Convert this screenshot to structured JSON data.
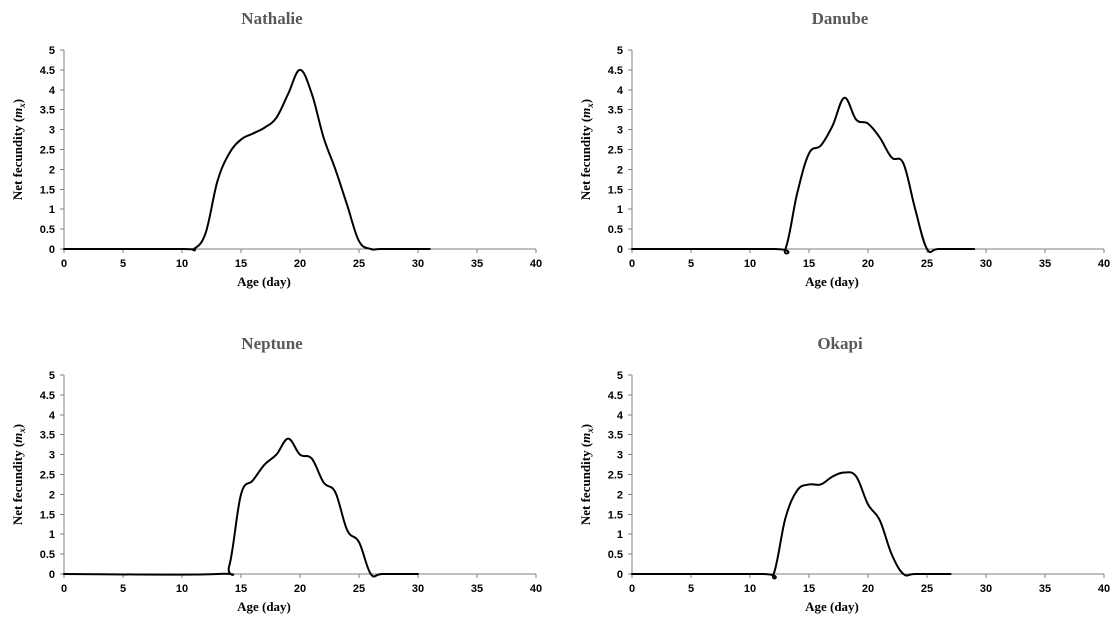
{
  "chart_data": [
    {
      "type": "line",
      "title": "Nathalie",
      "xlabel": "Age (day)",
      "ylabel_main": "Net fecundity (",
      "ylabel_symbol": "m",
      "ylabel_sub": "x",
      "ylabel_end": ")",
      "xlim": [
        0,
        40
      ],
      "ylim": [
        0,
        5
      ],
      "xticks": [
        "0",
        "5",
        "10",
        "15",
        "20",
        "25",
        "30",
        "35",
        "40"
      ],
      "yticks": [
        "0",
        "0.5",
        "1",
        "1.5",
        "2",
        "2.5",
        "3",
        "3.5",
        "4",
        "4.5",
        "5"
      ],
      "series": [
        {
          "x": [
            0,
            10,
            11,
            12,
            13,
            14,
            15,
            16,
            17,
            18,
            19,
            20,
            21,
            22,
            23,
            24,
            25,
            26,
            27,
            31
          ],
          "y": [
            0,
            0,
            0,
            0.4,
            1.7,
            2.4,
            2.75,
            2.9,
            3.05,
            3.3,
            3.9,
            4.5,
            3.9,
            2.8,
            2.0,
            1.1,
            0.2,
            0,
            0,
            0
          ]
        }
      ]
    },
    {
      "type": "line",
      "title": "Danube",
      "xlabel": "Age (day)",
      "ylabel_main": "Net fecundity (",
      "ylabel_symbol": "m",
      "ylabel_sub": "x",
      "ylabel_end": ")",
      "xlim": [
        0,
        40
      ],
      "ylim": [
        0,
        5
      ],
      "xticks": [
        "0",
        "5",
        "10",
        "15",
        "20",
        "25",
        "30",
        "35",
        "40"
      ],
      "yticks": [
        "0",
        "0.5",
        "1",
        "1.5",
        "2",
        "2.5",
        "3",
        "3.5",
        "4",
        "4.5",
        "5"
      ],
      "series": [
        {
          "x": [
            0,
            12,
            13,
            14,
            15,
            16,
            17,
            18,
            19,
            20,
            21,
            22,
            23,
            24,
            25,
            26,
            29
          ],
          "y": [
            0,
            0,
            0,
            1.4,
            2.4,
            2.6,
            3.1,
            3.8,
            3.25,
            3.15,
            2.8,
            2.3,
            2.15,
            1.0,
            0,
            0,
            0
          ]
        }
      ]
    },
    {
      "type": "line",
      "title": "Neptune",
      "xlabel": "Age (day)",
      "ylabel_main": "Net fecundity (",
      "ylabel_symbol": "m",
      "ylabel_sub": "x",
      "ylabel_end": ")",
      "xlim": [
        0,
        40
      ],
      "ylim": [
        0,
        5
      ],
      "xticks": [
        "0",
        "5",
        "10",
        "15",
        "20",
        "25",
        "30",
        "35",
        "40"
      ],
      "yticks": [
        "0",
        "0.5",
        "1",
        "1.5",
        "2",
        "2.5",
        "3",
        "3.5",
        "4",
        "4.5",
        "5"
      ],
      "series": [
        {
          "x": [
            0,
            13,
            14,
            15,
            16,
            17,
            18,
            19,
            20,
            21,
            22,
            23,
            24,
            25,
            26,
            27,
            30
          ],
          "y": [
            0,
            0,
            0.2,
            2.0,
            2.35,
            2.75,
            3.0,
            3.4,
            3.0,
            2.9,
            2.3,
            2.05,
            1.1,
            0.8,
            0,
            0,
            0
          ]
        }
      ]
    },
    {
      "type": "line",
      "title": "Okapi",
      "xlabel": "Age (day)",
      "ylabel_main": "Net fecundity (",
      "ylabel_symbol": "m",
      "ylabel_sub": "x",
      "ylabel_end": ")",
      "xlim": [
        0,
        40
      ],
      "ylim": [
        0,
        5
      ],
      "xticks": [
        "0",
        "5",
        "10",
        "15",
        "20",
        "25",
        "30",
        "35",
        "40"
      ],
      "yticks": [
        "0",
        "0.5",
        "1",
        "1.5",
        "2",
        "2.5",
        "3",
        "3.5",
        "4",
        "4.5",
        "5"
      ],
      "series": [
        {
          "x": [
            0,
            11,
            12,
            13,
            14,
            15,
            16,
            17,
            18,
            19,
            20,
            21,
            22,
            23,
            24,
            27
          ],
          "y": [
            0,
            0,
            0,
            1.4,
            2.1,
            2.25,
            2.25,
            2.45,
            2.55,
            2.45,
            1.75,
            1.35,
            0.5,
            0,
            0,
            0
          ]
        }
      ]
    }
  ]
}
